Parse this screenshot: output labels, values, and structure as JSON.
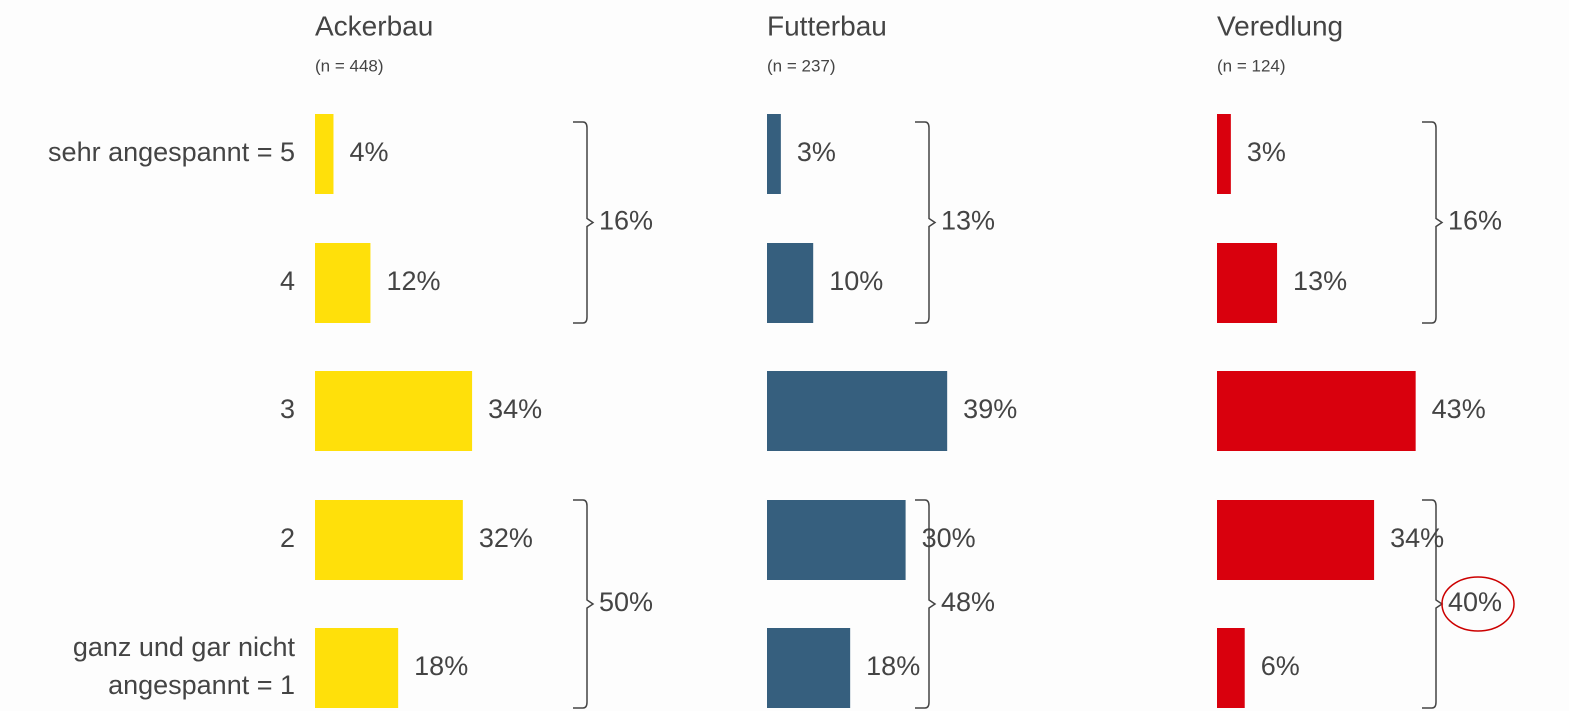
{
  "chart_data": [
    {
      "type": "bar",
      "title": "Ackerbau",
      "subtitle": "(n = 448)",
      "categories": [
        "sehr angespannt = 5",
        "4",
        "3",
        "2",
        "ganz und gar nicht\nangespannt = 1"
      ],
      "values": [
        4,
        12,
        34,
        32,
        18
      ],
      "value_labels": [
        "4%",
        "12%",
        "34%",
        "32%",
        "18%"
      ],
      "color": "#ffe00a",
      "top_box": {
        "value": 16,
        "label": "16%"
      },
      "bottom_box": {
        "value": 50,
        "label": "50%"
      }
    },
    {
      "type": "bar",
      "title": "Futterbau",
      "subtitle": "(n = 237)",
      "values": [
        3,
        10,
        39,
        30,
        18
      ],
      "value_labels": [
        "3%",
        "10%",
        "39%",
        "30%",
        "18%"
      ],
      "color": "#365f7e",
      "top_box": {
        "value": 13,
        "label": "13%"
      },
      "bottom_box": {
        "value": 48,
        "label": "48%"
      }
    },
    {
      "type": "bar",
      "title": "Veredlung",
      "subtitle": "(n = 124)",
      "values": [
        3,
        13,
        43,
        34,
        6
      ],
      "value_labels": [
        "3%",
        "13%",
        "43%",
        "34%",
        "6%"
      ],
      "color": "#d9000d",
      "top_box": {
        "value": 16,
        "label": "16%"
      },
      "bottom_box": {
        "value": 40,
        "label": "40%",
        "highlight": true
      }
    }
  ]
}
